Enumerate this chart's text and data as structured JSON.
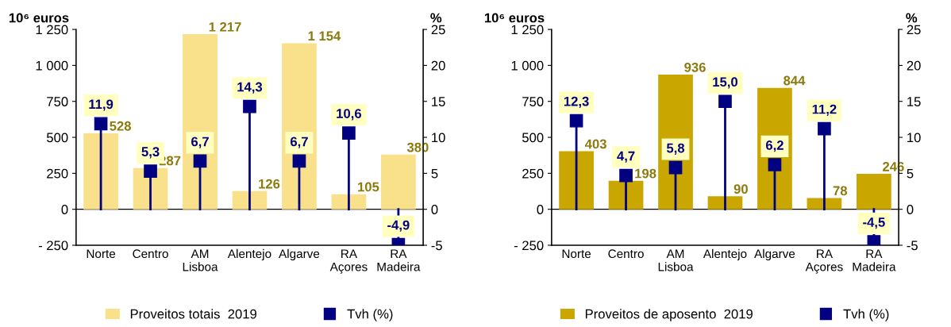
{
  "chart_data": [
    {
      "type": "bar",
      "categories": [
        "Norte",
        "Centro",
        "AM\nLisboa",
        "Alentejo",
        "Algarve",
        "RA\nAçores",
        "RA\nMadeira"
      ],
      "ylabel": "10⁶ euros",
      "y2label": "%",
      "ylim": [
        -250,
        1250
      ],
      "yticks": [
        {
          "value": -250,
          "label": "- 250"
        },
        0,
        250,
        500,
        750,
        {
          "value": 1000,
          "label": "1 000"
        },
        {
          "value": 1250,
          "label": "1 250"
        }
      ],
      "y2lim": [
        -5,
        25
      ],
      "y2ticks": [
        -5,
        0,
        5,
        10,
        15,
        20,
        25
      ],
      "legend": "bottom",
      "series": [
        {
          "name": "Proveitos totais  2019",
          "color": "#f9e08a",
          "values": [
            528,
            287,
            1217,
            126,
            1154,
            105,
            380
          ],
          "value_labels": [
            "528",
            "287",
            "1 217",
            "126",
            "1 154",
            "105",
            "380"
          ]
        },
        {
          "name": "Tvh (%)",
          "type": "lollipop",
          "axis": "y2",
          "color": "#000080",
          "marker": "square",
          "values": [
            11.9,
            5.3,
            6.7,
            14.3,
            6.7,
            10.6,
            -4.9
          ],
          "value_labels": [
            "11,9",
            "5,3",
            "6,7",
            "14,3",
            "6,7",
            "10,6",
            "-4,9"
          ]
        }
      ]
    },
    {
      "type": "bar",
      "categories": [
        "Norte",
        "Centro",
        "AM\nLisboa",
        "Alentejo",
        "Algarve",
        "RA\nAçores",
        "RA\nMadeira"
      ],
      "ylabel": "10⁶ euros",
      "y2label": "%",
      "ylim": [
        -250,
        1250
      ],
      "yticks": [
        {
          "value": -250,
          "label": "- 250"
        },
        0,
        250,
        500,
        750,
        {
          "value": 1000,
          "label": "1 000"
        },
        {
          "value": 1250,
          "label": "1 250"
        }
      ],
      "y2lim": [
        -5,
        25
      ],
      "y2ticks": [
        -5,
        0,
        5,
        10,
        15,
        20,
        25
      ],
      "legend": "bottom",
      "series": [
        {
          "name": "Proveitos de aposento  2019",
          "color": "#c9a600",
          "values": [
            403,
            198,
            936,
            90,
            844,
            78,
            246
          ],
          "value_labels": [
            "403",
            "198",
            "936",
            "90",
            "844",
            "78",
            "246"
          ]
        },
        {
          "name": "Tvh (%)",
          "type": "lollipop",
          "axis": "y2",
          "color": "#000080",
          "marker": "square",
          "values": [
            12.3,
            4.7,
            5.8,
            15.0,
            6.2,
            11.2,
            -4.5
          ],
          "value_labels": [
            "12,3",
            "4,7",
            "5,8",
            "15,0",
            "6,2",
            "11,2",
            "-4,5"
          ]
        }
      ]
    }
  ]
}
